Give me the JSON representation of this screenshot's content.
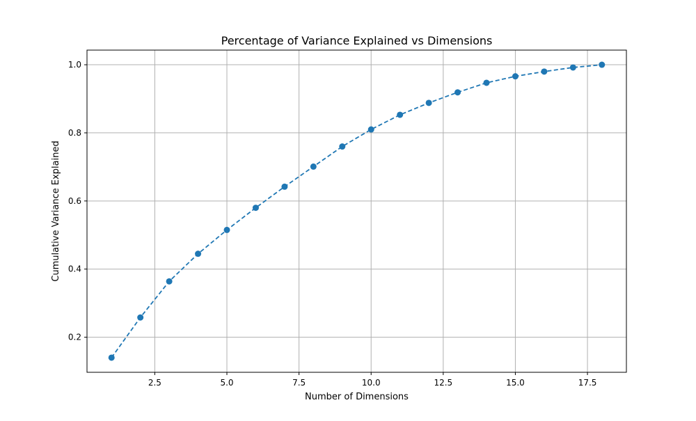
{
  "chart_data": {
    "type": "line",
    "title": "Percentage of Variance Explained vs Dimensions",
    "xlabel": "Number of Dimensions",
    "ylabel": "Cumulative Variance Explained",
    "xlim": [
      0.15,
      18.85
    ],
    "ylim": [
      0.097,
      1.043
    ],
    "x_ticks": [
      2.5,
      5.0,
      7.5,
      10.0,
      12.5,
      15.0,
      17.5
    ],
    "x_tick_labels": [
      "2.5",
      "5.0",
      "7.5",
      "10.0",
      "12.5",
      "15.0",
      "17.5"
    ],
    "y_ticks": [
      0.2,
      0.4,
      0.6,
      0.8,
      1.0
    ],
    "y_tick_labels": [
      "0.2",
      "0.4",
      "0.6",
      "0.8",
      "1.0"
    ],
    "grid": true,
    "line_style": "dashed",
    "marker": "circle",
    "series": [
      {
        "x": [
          1,
          2,
          3,
          4,
          5,
          6,
          7,
          8,
          9,
          10,
          11,
          12,
          13,
          14,
          15,
          16,
          17,
          18
        ],
        "values": [
          0.14,
          0.258,
          0.364,
          0.445,
          0.515,
          0.58,
          0.642,
          0.701,
          0.76,
          0.81,
          0.853,
          0.888,
          0.919,
          0.947,
          0.966,
          0.98,
          0.992,
          1.0
        ],
        "color": "#1f77b4"
      }
    ]
  }
}
